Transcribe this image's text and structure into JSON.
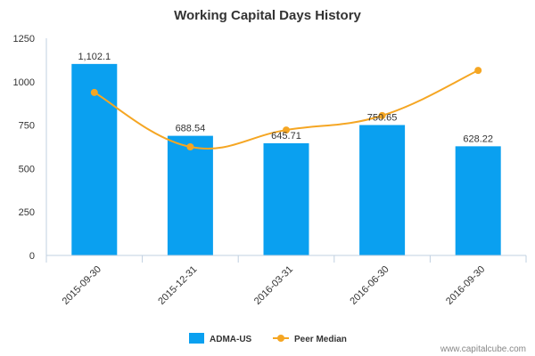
{
  "chart_data": {
    "type": "bar",
    "title": "Working Capital Days History",
    "categories": [
      "2015-09-30",
      "2015-12-31",
      "2016-03-31",
      "2016-06-30",
      "2016-09-30"
    ],
    "series": [
      {
        "name": "ADMA-US",
        "kind": "bar",
        "color": "#0aa0f0",
        "values": [
          1102.1,
          688.54,
          645.71,
          750.65,
          628.22
        ],
        "labels": [
          "1,102.1",
          "688.54",
          "645.71",
          "750.65",
          "628.22"
        ]
      },
      {
        "name": "Peer Median",
        "kind": "line",
        "color": "#f5a623",
        "values": [
          938,
          625,
          722,
          805,
          1065
        ]
      }
    ],
    "y_ticks": [
      "0",
      "250",
      "500",
      "750",
      "1000",
      "1250"
    ],
    "ylim": [
      0,
      1250
    ],
    "grid": false,
    "legend_position": "bottom"
  },
  "credit": "www.capitalcube.com"
}
